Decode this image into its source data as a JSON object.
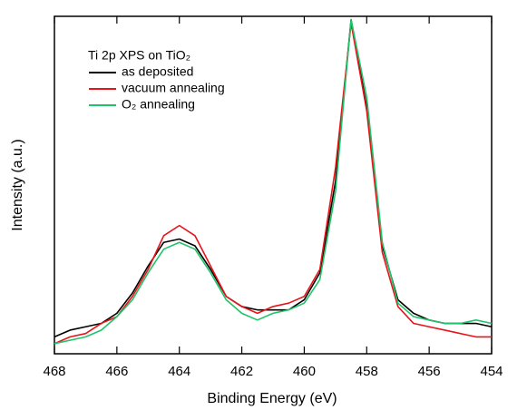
{
  "chart_data": {
    "type": "line",
    "title": "Ti 2p XPS on TiO₂",
    "x_label": "Binding Energy (eV)",
    "y_label": "Intensity (a.u.)",
    "x": [
      468,
      467.5,
      467,
      466.5,
      466,
      465.5,
      465,
      464.5,
      464,
      463.5,
      463,
      462.5,
      462,
      461.5,
      461,
      460.5,
      460,
      459.5,
      459,
      458.5,
      458,
      457.5,
      457,
      456.5,
      456,
      455.5,
      455,
      454.5,
      454
    ],
    "series": [
      {
        "name": "as deposited",
        "color": "#000000",
        "values": [
          0.05,
          0.07,
          0.08,
          0.09,
          0.12,
          0.18,
          0.26,
          0.33,
          0.34,
          0.32,
          0.25,
          0.17,
          0.14,
          0.13,
          0.13,
          0.13,
          0.16,
          0.24,
          0.51,
          0.99,
          0.73,
          0.32,
          0.16,
          0.12,
          0.1,
          0.09,
          0.09,
          0.09,
          0.08
        ]
      },
      {
        "name": "vacuum annealing",
        "color": "#e8141a",
        "values": [
          0.03,
          0.05,
          0.06,
          0.09,
          0.11,
          0.17,
          0.25,
          0.35,
          0.38,
          0.35,
          0.26,
          0.17,
          0.14,
          0.12,
          0.14,
          0.15,
          0.17,
          0.25,
          0.55,
          0.98,
          0.72,
          0.3,
          0.14,
          0.09,
          0.08,
          0.07,
          0.06,
          0.05,
          0.05
        ]
      },
      {
        "name": "O₂ annealing",
        "color": "#1fc36a",
        "values": [
          0.03,
          0.04,
          0.05,
          0.07,
          0.11,
          0.16,
          0.24,
          0.31,
          0.33,
          0.31,
          0.24,
          0.16,
          0.12,
          0.1,
          0.12,
          0.13,
          0.15,
          0.22,
          0.48,
          0.99,
          0.76,
          0.33,
          0.15,
          0.11,
          0.1,
          0.09,
          0.09,
          0.1,
          0.09
        ]
      }
    ],
    "xlim": [
      468,
      454
    ],
    "ylim": [
      0,
      1
    ],
    "xticks": [
      468,
      466,
      464,
      462,
      460,
      458,
      456,
      454
    ]
  }
}
